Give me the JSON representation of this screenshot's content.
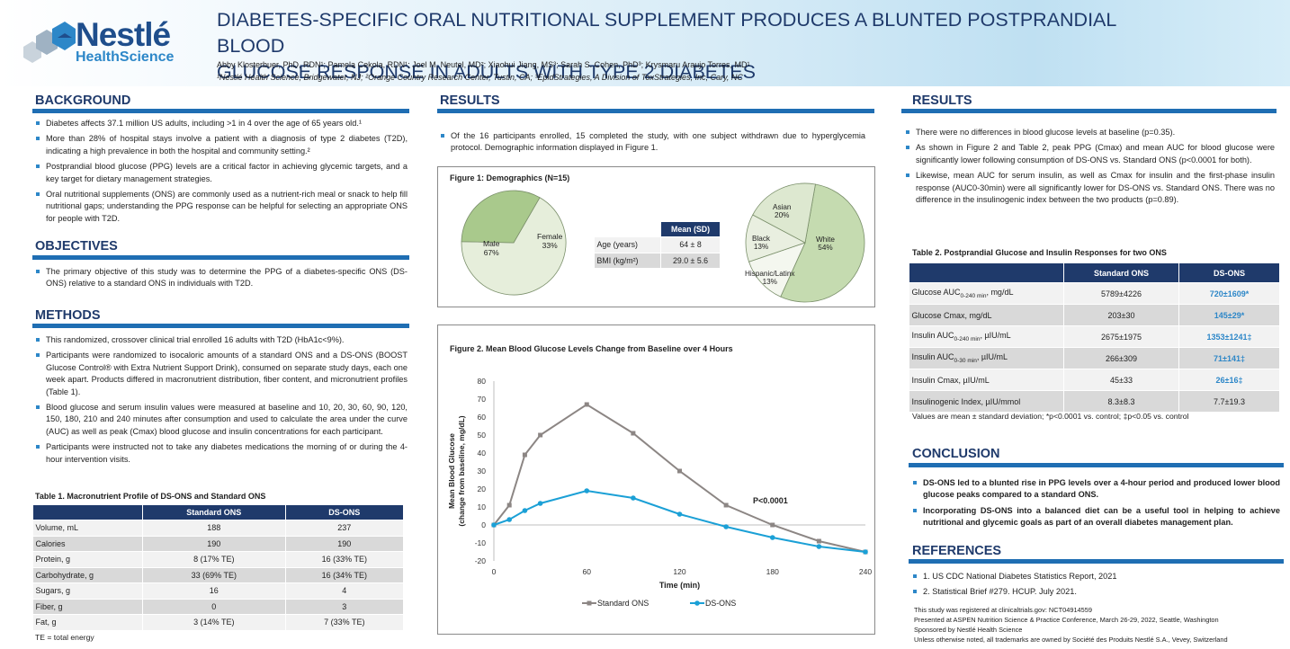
{
  "header": {
    "logo_word": "Nestlé",
    "logo_sub": "HealthScience",
    "title_line1": "DIABETES-SPECIFIC ORAL NUTRITIONAL SUPPLEMENT PRODUCES A BLUNTED POSTPRANDIAL BLOOD",
    "title_line2": "GLUCOSE RESPONSE IN ADULTS WITH TYPE 2 DIABETES",
    "authors": "Abby Klosterbuer, PhD, RDN¹; Pamela Cekola, RDN¹; Joel M. Neutel, MD²; Xiaohui Jiang, MS³; Sarah S. Cohen, PhD³; Krysmaru Araujo Torres, MD¹",
    "affiliations": "¹Nestlé Health Science, Bridgewater, NJ; ²Orange Country Research Center, Tustin, CA; ³EpidStrategies, A Division of ToxStrategies, Inc, Cary, NC"
  },
  "background": {
    "title": "BACKGROUND",
    "bullets": [
      "Diabetes affects 37.1 million US adults, including >1 in 4 over the age of 65 years old.¹",
      "More than 28% of hospital stays involve a patient with a diagnosis of type 2 diabetes (T2D), indicating a high prevalence in both the hospital and community setting.²",
      "Postprandial blood glucose (PPG) levels are a critical factor in achieving glycemic targets, and a key target for dietary management strategies.",
      "Oral nutritional supplements (ONS) are commonly used as a nutrient-rich meal or snack to help fill nutritional gaps; understanding the PPG response can be helpful for selecting an appropriate ONS for people with T2D."
    ]
  },
  "objectives": {
    "title": "OBJECTIVES",
    "bullets": [
      "The primary objective of this study was to determine the PPG of a diabetes-specific ONS (DS-ONS) relative to a standard ONS in individuals with T2D."
    ]
  },
  "methods": {
    "title": "METHODS",
    "bullets": [
      "This randomized, crossover clinical trial enrolled 16 adults with T2D (HbA1c<9%).",
      "Participants were randomized to isocaloric amounts of a standard ONS and a DS-ONS (BOOST Glucose Control® with Extra Nutrient Support Drink), consumed on separate study days, each one week apart. Products differed in macronutrient distribution, fiber content, and micronutrient profiles (Table 1).",
      "Blood glucose and serum insulin values were measured at baseline and 10, 20, 30, 60, 90, 120, 150, 180, 210 and 240 minutes after consumption and used to calculate the area under the curve (AUC) as well as peak (Cmax) blood glucose and insulin concentrations for each participant.",
      "Participants were instructed not to take any diabetes medications the morning of or during the 4-hour intervention visits."
    ]
  },
  "table1": {
    "caption": "Table 1. Macronutrient Profile of DS-ONS and Standard ONS",
    "headers": [
      "",
      "Standard ONS",
      "DS-ONS"
    ],
    "rows": [
      [
        "Volume, mL",
        "188",
        "237"
      ],
      [
        "Calories",
        "190",
        "190"
      ],
      [
        "Protein, g",
        "8 (17% TE)",
        "16 (33% TE)"
      ],
      [
        "Carbohydrate, g",
        "33 (69% TE)",
        "16 (34% TE)"
      ],
      [
        "Sugars, g",
        "16",
        "4"
      ],
      [
        "Fiber, g",
        "0",
        "3"
      ],
      [
        "Fat, g",
        "3 (14% TE)",
        "7 (33% TE)"
      ]
    ],
    "note": "TE = total energy"
  },
  "results1": {
    "title": "RESULTS",
    "bullets": [
      "Of the 16 participants enrolled, 15 completed the study, with one subject withdrawn due to hyperglycemia protocol. Demographic information displayed in Figure 1."
    ]
  },
  "figure1": {
    "title": "Figure 1: Demographics (N=15)",
    "sex": [
      {
        "label": "Male",
        "pct": "67%",
        "value": 67,
        "color": "#e6eedb"
      },
      {
        "label": "Female",
        "pct": "33%",
        "value": 33,
        "color": "#a9c98c"
      }
    ],
    "table_header": [
      "",
      "Mean (SD)"
    ],
    "table_rows": [
      [
        "Age (years)",
        "64 ± 8"
      ],
      [
        "BMI (kg/m²)",
        "29.0 ± 5.6"
      ]
    ],
    "race": [
      {
        "label": "White",
        "pct": "54%",
        "value": 54,
        "color": "#c5dbb0"
      },
      {
        "label": "Hispanic/Latinx",
        "pct": "13%",
        "value": 13,
        "color": "#f4f7ef"
      },
      {
        "label": "Black",
        "pct": "13%",
        "value": 13,
        "color": "#e9efe0"
      },
      {
        "label": "Asian",
        "pct": "20%",
        "value": 20,
        "color": "#dde8d0"
      }
    ]
  },
  "figure2": {
    "title": "Figure 2. Mean Blood Glucose Levels Change from Baseline over 4 Hours",
    "annotation": "P<0.0001"
  },
  "chart_data": {
    "type": "line",
    "title": "Figure 2. Mean Blood Glucose Levels Change from Baseline over 4 Hours",
    "xlabel": "Time (min)",
    "ylabel": "Mean Blood Glucose (change from baseline, mg/dL)",
    "ylabel_line1": "Mean Blood Glucose",
    "ylabel_line2": "(change from baseline, mg/dL)",
    "x": [
      0,
      10,
      20,
      30,
      60,
      90,
      120,
      150,
      180,
      210,
      240
    ],
    "xticks": [
      0,
      60,
      120,
      180,
      240
    ],
    "yticks": [
      80,
      70,
      60,
      50,
      40,
      30,
      20,
      10,
      0,
      -10,
      -20
    ],
    "ylim": [
      -20,
      80
    ],
    "xlim": [
      0,
      240
    ],
    "series": [
      {
        "name": "Standard ONS",
        "color": "#8c8684",
        "values": [
          0,
          11,
          39,
          50,
          67,
          51,
          30,
          11,
          0,
          -9,
          -15
        ]
      },
      {
        "name": "DS-ONS",
        "color": "#1ba0d6",
        "values": [
          0,
          3,
          8,
          12,
          19,
          15,
          6,
          -1,
          -7,
          -12,
          -15
        ]
      }
    ],
    "annotation": "P<0.0001"
  },
  "results2": {
    "title": "RESULTS",
    "bullets": [
      "There were no differences in blood glucose levels at baseline (p=0.35).",
      "As shown in Figure 2 and Table 2, peak PPG (Cmax) and mean AUC for blood glucose were significantly lower following consumption of DS-ONS vs. Standard ONS (p<0.0001 for both).",
      "Likewise, mean AUC for serum insulin, as well as Cmax for insulin and the first-phase insulin response (AUC0-30min) were all significantly lower for DS-ONS vs. Standard ONS. There was no difference in the insulinogenic index between the two products (p=0.89)."
    ]
  },
  "table2": {
    "caption": "Table 2. Postprandial Glucose and Insulin Responses for two ONS",
    "headers": [
      "",
      "Standard ONS",
      "DS-ONS"
    ],
    "rows": [
      {
        "label": "Glucose AUC",
        "sub": "0-240 min",
        "unit": ", mg/dL",
        "std": "5789±4226",
        "ds": "720±1609*"
      },
      {
        "label": "Glucose Cmax, mg/dL",
        "sub": "",
        "unit": "",
        "std": "203±30",
        "ds": "145±29*"
      },
      {
        "label": "Insulin AUC",
        "sub": "0-240 min",
        "unit": ", µIU/mL",
        "std": "2675±1975",
        "ds": "1353±1241‡"
      },
      {
        "label": "Insulin AUC",
        "sub": "0-30 min",
        "unit": ", µIU/mL",
        "std": "266±309",
        "ds": "71±141‡"
      },
      {
        "label": "Insulin Cmax, µIU/mL",
        "sub": "",
        "unit": "",
        "std": "45±33",
        "ds": "26±16‡"
      },
      {
        "label": "Insulinogenic Index, µIU/mmol",
        "sub": "",
        "unit": "",
        "std": "8.3±8.3",
        "ds": "7.7±19.3"
      }
    ],
    "note": "Values are mean ± standard deviation; *p<0.0001 vs. control; ‡p<0.05 vs. control"
  },
  "conclusion": {
    "title": "CONCLUSION",
    "bullets": [
      "DS-ONS led to a blunted rise in PPG levels over a 4-hour period and produced lower blood glucose peaks compared to a standard ONS.",
      "Incorporating DS-ONS into a balanced diet can be a useful tool in helping to achieve nutritional and glycemic goals as part of an overall diabetes management plan."
    ]
  },
  "references": {
    "title": "REFERENCES",
    "items": [
      "1. US CDC National Diabetes Statistics Report, 2021",
      "2. Statistical Brief #279. HCUP. July 2021."
    ]
  },
  "footer": [
    "This study was registered at clinicaltrials.gov: NCT04914559",
    "Presented at ASPEN Nutrition Science & Practice Conference, March 26-29, 2022, Seattle, Washington",
    "Sponsored by Nestlé Health Science",
    "Unless otherwise noted, all trademarks are owned by Société des Produits Nestlé S.A., Vevey, Switzerland"
  ]
}
